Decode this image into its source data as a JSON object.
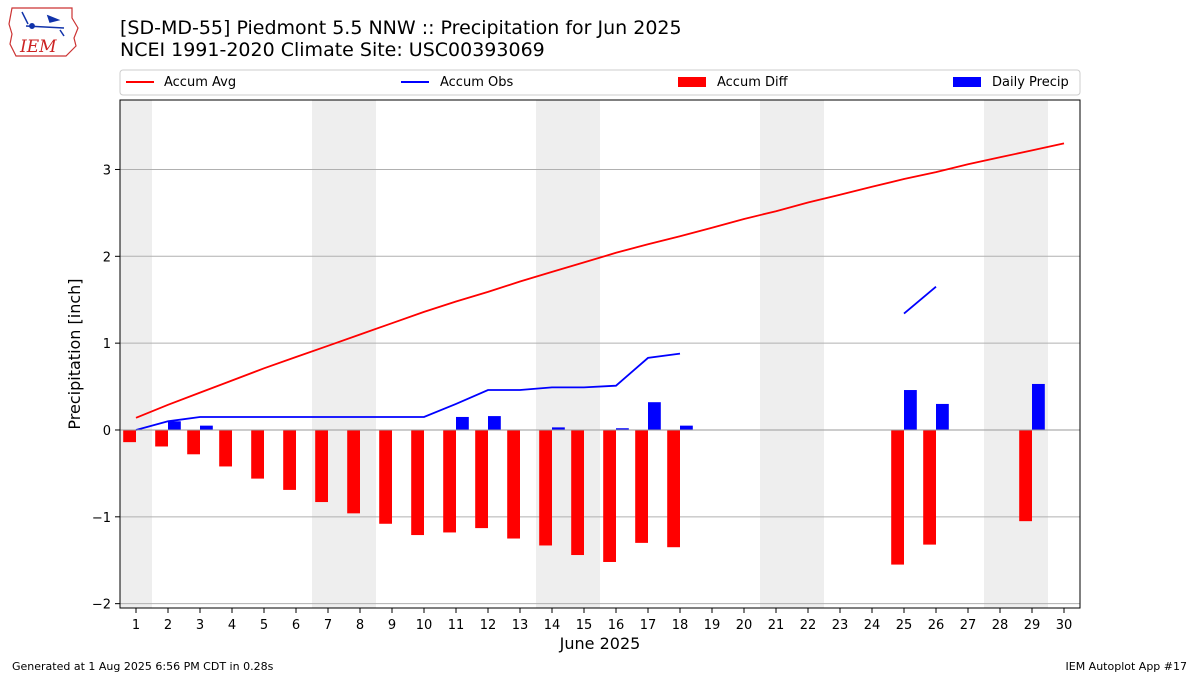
{
  "title_line1": "[SD-MD-55] Piedmont 5.5 NNW :: Precipitation for Jun 2025",
  "title_line2": "NCEI 1991-2020 Climate Site: USC00393069",
  "logo_text": "IEM",
  "footer_left": "Generated at 1 Aug 2025 6:56 PM CDT in 0.28s",
  "footer_right": "IEM Autoplot App #17",
  "colors": {
    "avg": "#ff0000",
    "obs": "#0000ff",
    "diff": "#ff0000",
    "daily": "#0000ff",
    "weekend": "#eeeeee",
    "grid": "#b0b0b0"
  },
  "chart_data": {
    "type": "bar",
    "xlabel": "June 2025",
    "ylabel": "Precipitation [inch]",
    "xlim": [
      0.5,
      30.5
    ],
    "ylim": [
      -2.05,
      3.8
    ],
    "yticks": [
      -2,
      -1,
      0,
      1,
      2,
      3
    ],
    "ytick_labels": [
      "−2",
      "−1",
      "0",
      "1",
      "2",
      "3"
    ],
    "grid": "horizontal",
    "legend_placement": "top",
    "weekend_days": [
      1,
      7,
      8,
      14,
      15,
      21,
      22,
      28,
      29
    ],
    "days": [
      1,
      2,
      3,
      4,
      5,
      6,
      7,
      8,
      9,
      10,
      11,
      12,
      13,
      14,
      15,
      16,
      17,
      18,
      19,
      20,
      21,
      22,
      23,
      24,
      25,
      26,
      27,
      28,
      29,
      30
    ],
    "series": [
      {
        "name": "Accum Avg",
        "kind": "line",
        "values": [
          0.14,
          0.29,
          0.43,
          0.57,
          0.71,
          0.84,
          0.97,
          1.1,
          1.23,
          1.36,
          1.48,
          1.59,
          1.71,
          1.82,
          1.93,
          2.04,
          2.14,
          2.23,
          2.33,
          2.43,
          2.52,
          2.62,
          2.71,
          2.8,
          2.89,
          2.97,
          3.06,
          3.14,
          3.22,
          3.3
        ]
      },
      {
        "name": "Accum Obs",
        "kind": "line",
        "values": [
          0.0,
          0.1,
          0.15,
          0.15,
          0.15,
          0.15,
          0.15,
          0.15,
          0.15,
          0.15,
          0.3,
          0.46,
          0.46,
          0.49,
          0.49,
          0.51,
          0.83,
          0.88,
          null,
          null,
          null,
          null,
          null,
          null,
          1.34,
          1.65,
          null,
          null,
          null,
          null
        ]
      },
      {
        "name": "Accum Diff",
        "kind": "bar",
        "values": [
          -0.14,
          -0.19,
          -0.28,
          -0.42,
          -0.56,
          -0.69,
          -0.83,
          -0.96,
          -1.08,
          -1.21,
          -1.18,
          -1.13,
          -1.25,
          -1.33,
          -1.44,
          -1.52,
          -1.3,
          -1.35,
          null,
          null,
          null,
          null,
          null,
          null,
          -1.55,
          -1.32,
          null,
          null,
          -1.05,
          null
        ]
      },
      {
        "name": "Daily Precip",
        "kind": "bar",
        "values": [
          null,
          0.1,
          0.05,
          null,
          null,
          null,
          null,
          null,
          null,
          null,
          0.15,
          0.16,
          null,
          0.03,
          null,
          0.02,
          0.32,
          0.05,
          null,
          null,
          null,
          null,
          null,
          null,
          0.46,
          0.3,
          null,
          null,
          0.53,
          null
        ]
      }
    ]
  }
}
